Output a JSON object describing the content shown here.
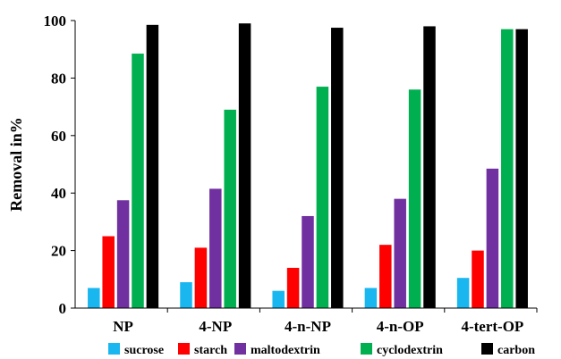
{
  "chart_data": {
    "type": "bar",
    "title": "",
    "xlabel": "",
    "ylabel": "Removal in%",
    "ylim": [
      0,
      100
    ],
    "yticks": [
      "0",
      "20",
      "40",
      "60",
      "80",
      "100"
    ],
    "grid": false,
    "legend_position": "bottom",
    "categories": [
      "NP",
      "4-NP",
      "4-n-NP",
      "4-n-OP",
      "4-tert-OP"
    ],
    "series": [
      {
        "name": "sucrose",
        "color": "#1ab6f0",
        "values": [
          7,
          9,
          6,
          7,
          10.5
        ]
      },
      {
        "name": "starch",
        "color": "#ff0000",
        "values": [
          25,
          21,
          14,
          22,
          20
        ]
      },
      {
        "name": "maltodextrin",
        "color": "#7030a0",
        "values": [
          37.5,
          41.5,
          32,
          38,
          48.5
        ]
      },
      {
        "name": "cyclodextrin",
        "color": "#00b050",
        "values": [
          88.5,
          69,
          77,
          76,
          97
        ]
      },
      {
        "name": "carbon",
        "color": "#000000",
        "values": [
          98.5,
          99,
          97.5,
          98,
          97
        ]
      }
    ]
  }
}
